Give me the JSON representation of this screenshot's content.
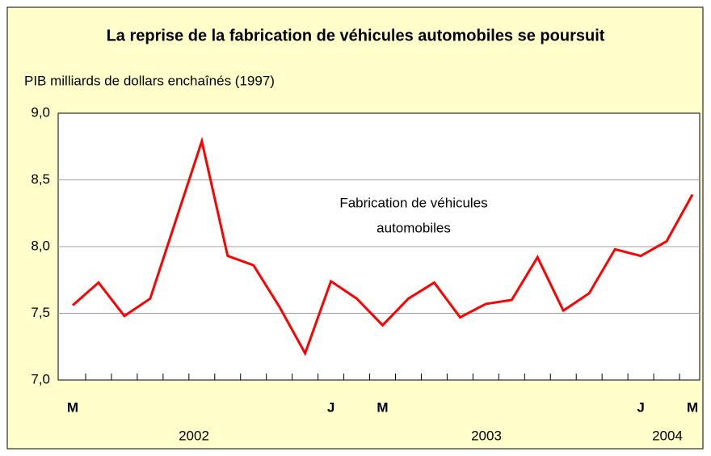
{
  "chart_data": {
    "type": "line",
    "title": "La reprise de la fabrication de véhicules automobiles se poursuit",
    "y_label": "PIB milliards de dollars enchaînés (1997)",
    "annotation": [
      "Fabrication de véhicules",
      "automobiles"
    ],
    "categories": [
      "M",
      null,
      null,
      null,
      null,
      null,
      null,
      null,
      null,
      null,
      "J",
      null,
      "M",
      null,
      null,
      null,
      null,
      null,
      null,
      null,
      null,
      null,
      "J",
      null,
      "M"
    ],
    "year_labels": [
      "2002",
      "2003",
      "2004"
    ],
    "series": [
      {
        "name": "Fabrication de véhicules automobiles",
        "color": "#ff0000",
        "values": [
          7.56,
          7.73,
          7.48,
          7.61,
          8.2,
          8.79,
          7.93,
          7.86,
          7.55,
          7.2,
          7.74,
          7.61,
          7.41,
          7.61,
          7.73,
          7.47,
          7.57,
          7.6,
          7.92,
          7.52,
          7.65,
          7.98,
          7.93,
          8.04,
          8.39
        ]
      }
    ],
    "ylim": [
      7.0,
      9.0
    ],
    "yticks": [
      {
        "value": 7.0,
        "label": "7,0"
      },
      {
        "value": 7.5,
        "label": "7,5"
      },
      {
        "value": 8.0,
        "label": "8,0"
      },
      {
        "value": 8.5,
        "label": "8,5"
      },
      {
        "value": 9.0,
        "label": "9,0"
      }
    ],
    "grid": true
  }
}
